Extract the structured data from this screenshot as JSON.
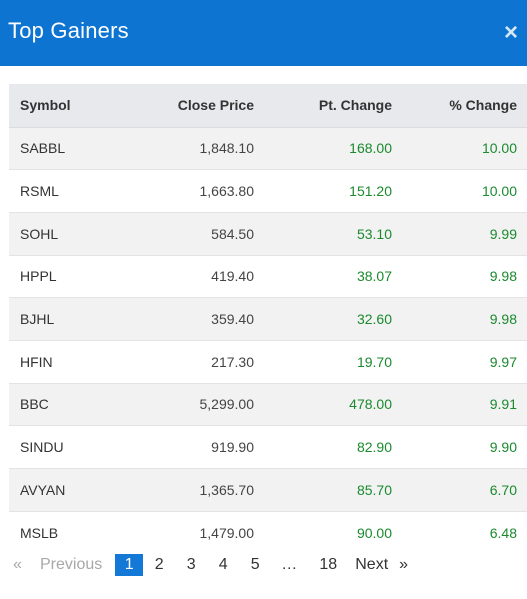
{
  "header": {
    "title": "Top Gainers",
    "close_icon": "×"
  },
  "table": {
    "columns": [
      "Symbol",
      "Close Price",
      "Pt. Change",
      "% Change"
    ],
    "rows": [
      {
        "symbol": "SABBL",
        "close": "1,848.10",
        "pt": "168.00",
        "pct": "10.00"
      },
      {
        "symbol": "RSML",
        "close": "1,663.80",
        "pt": "151.20",
        "pct": "10.00"
      },
      {
        "symbol": "SOHL",
        "close": "584.50",
        "pt": "53.10",
        "pct": "9.99"
      },
      {
        "symbol": "HPPL",
        "close": "419.40",
        "pt": "38.07",
        "pct": "9.98"
      },
      {
        "symbol": "BJHL",
        "close": "359.40",
        "pt": "32.60",
        "pct": "9.98"
      },
      {
        "symbol": "HFIN",
        "close": "217.30",
        "pt": "19.70",
        "pct": "9.97"
      },
      {
        "symbol": "BBC",
        "close": "5,299.00",
        "pt": "478.00",
        "pct": "9.91"
      },
      {
        "symbol": "SINDU",
        "close": "919.90",
        "pt": "82.90",
        "pct": "9.90"
      },
      {
        "symbol": "AVYAN",
        "close": "1,365.70",
        "pt": "85.70",
        "pct": "6.70"
      },
      {
        "symbol": "MSLB",
        "close": "1,479.00",
        "pt": "90.00",
        "pct": "6.48"
      }
    ]
  },
  "pagination": {
    "prev_arrow": "«",
    "previous": "Previous",
    "pages": [
      "1",
      "2",
      "3",
      "4",
      "5",
      "…",
      "18"
    ],
    "active_page": "1",
    "next": "Next",
    "next_arrow": "»"
  },
  "colors": {
    "header_bg": "#0e74d2",
    "positive": "#1a8a2e",
    "active_page": "#1479d6"
  }
}
